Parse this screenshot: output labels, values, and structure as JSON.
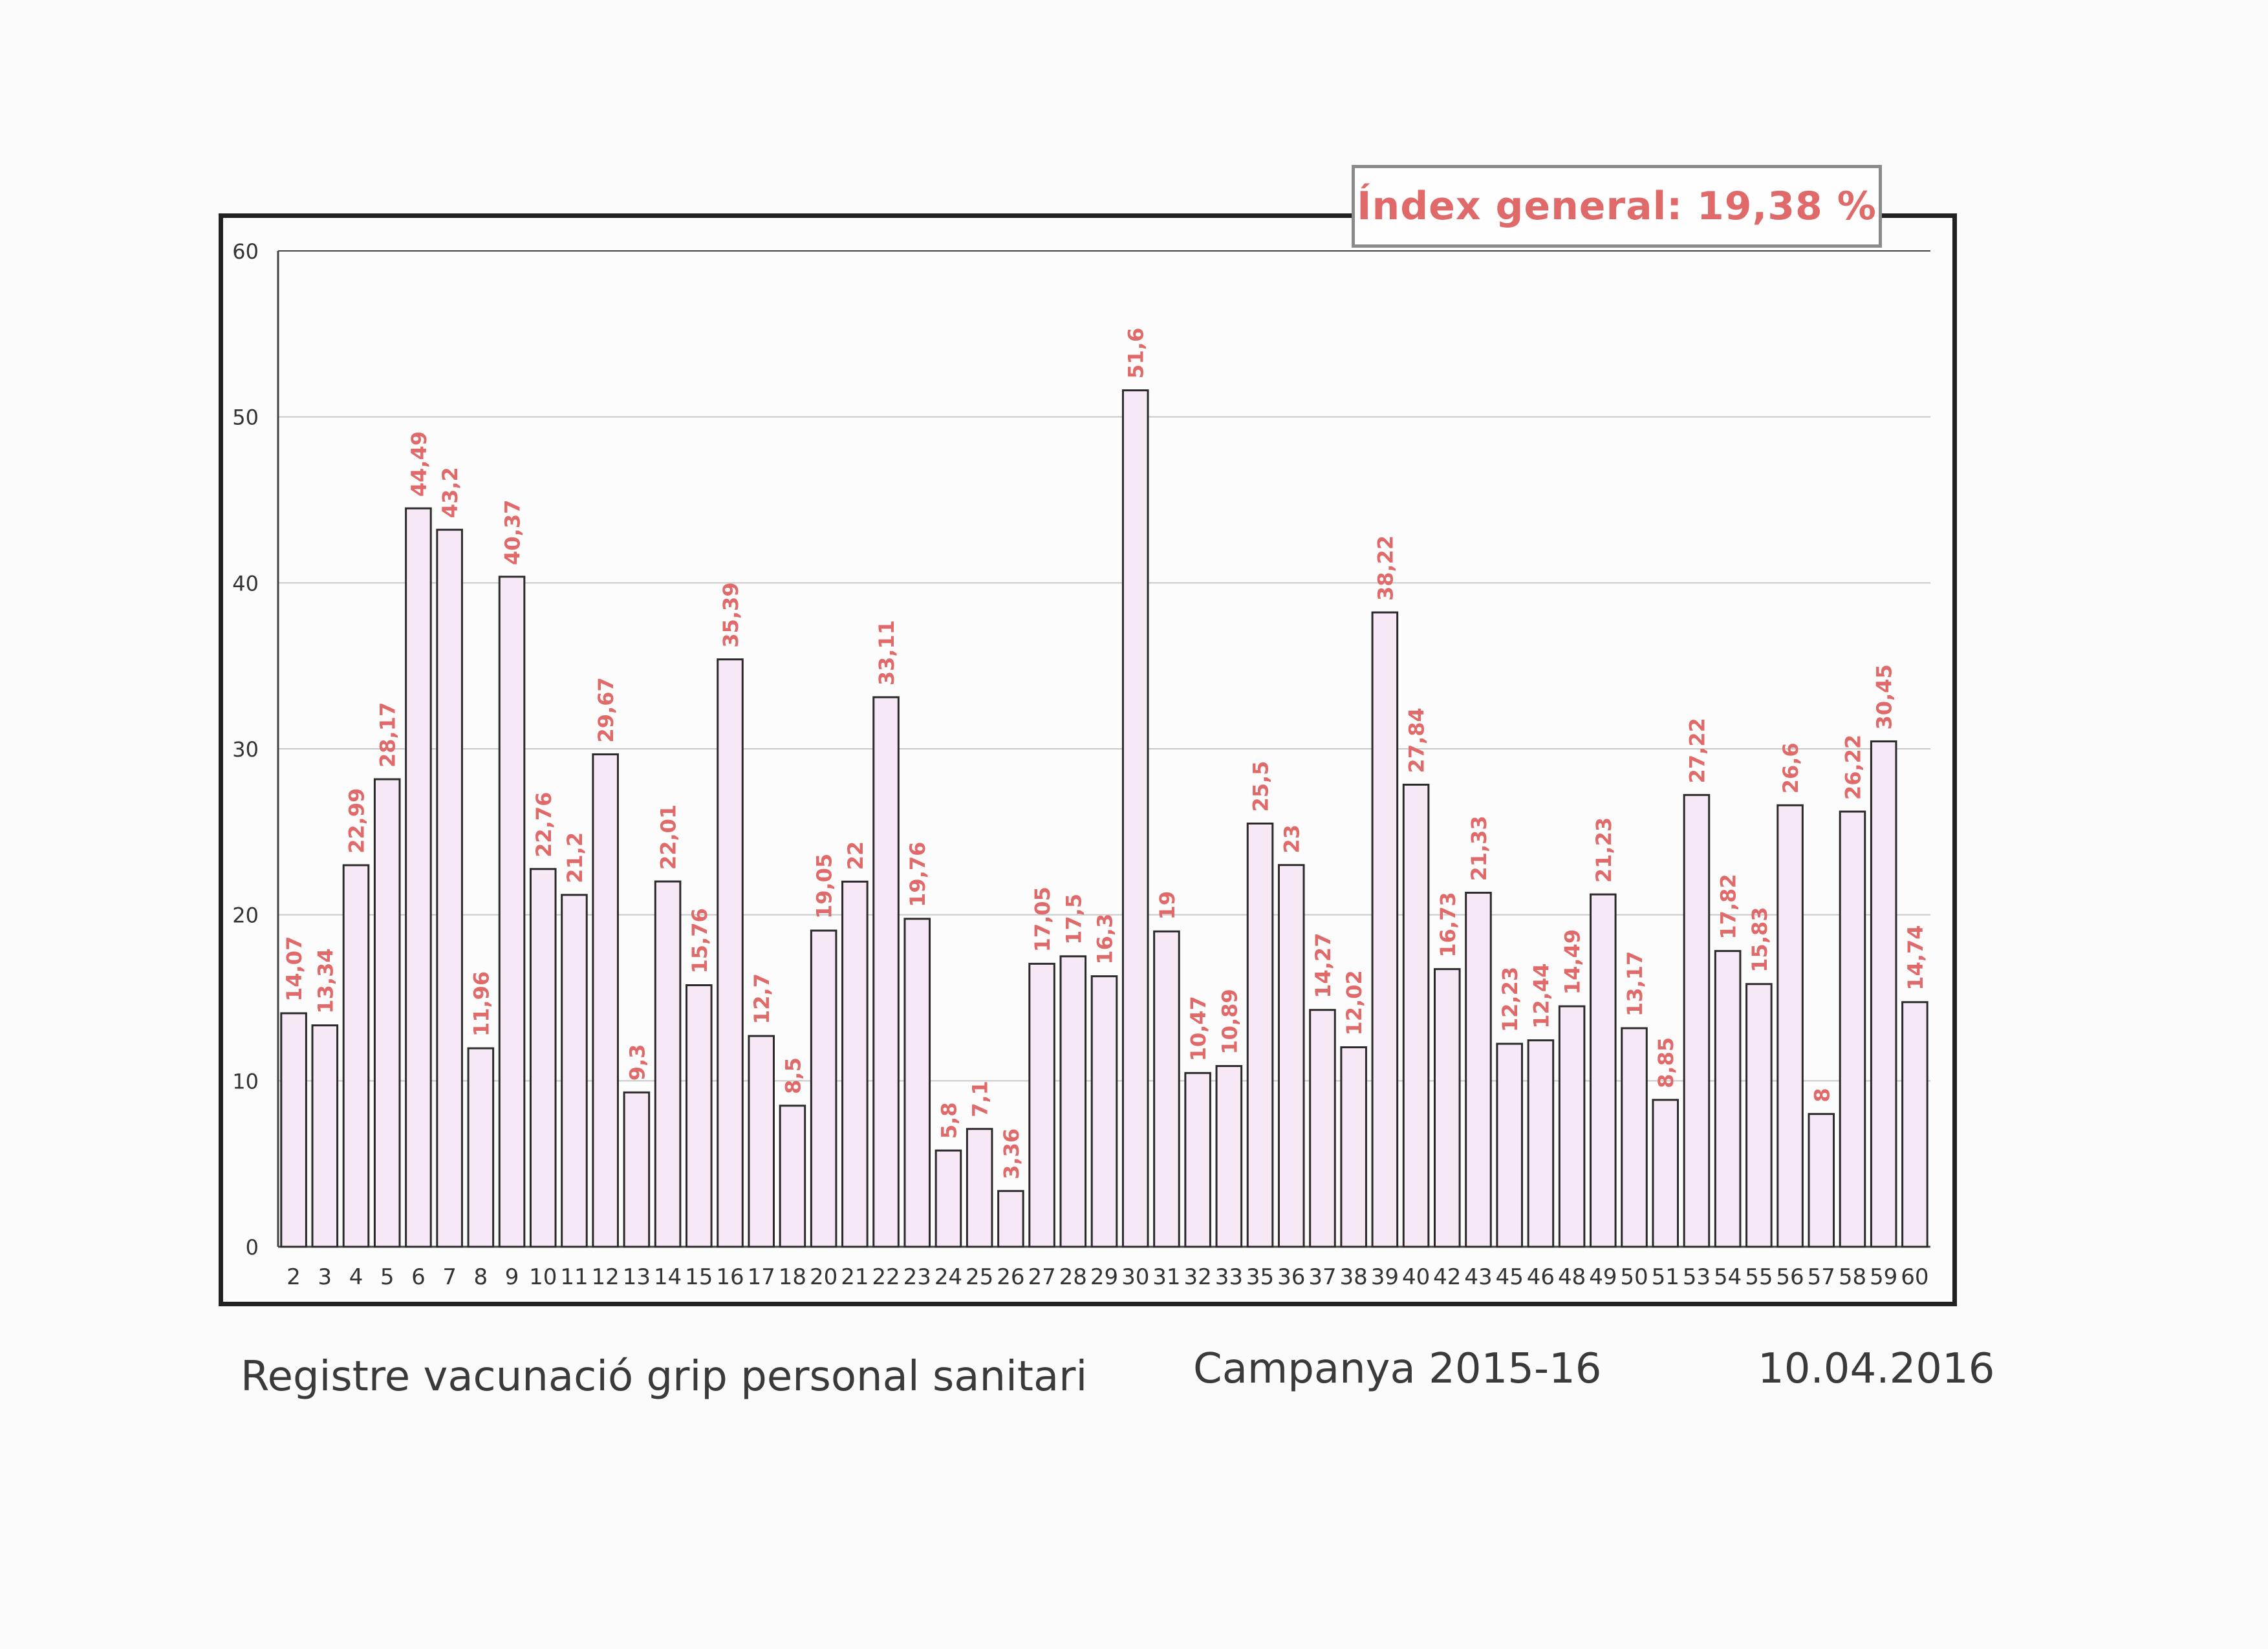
{
  "index_label": "Índex general: 19,38 %",
  "captions": {
    "title": "Registre vacunació grip personal sanitari",
    "campaign": "Campanya 2015-16",
    "date": "10.04.2016"
  },
  "colors": {
    "bar_fill": "#f6e8f4",
    "bar_stroke": "#2a2a2a",
    "label": "#e06a6a",
    "grid": "#c8c8c8"
  },
  "chart_data": {
    "type": "bar",
    "categories": [
      "2",
      "3",
      "4",
      "5",
      "6",
      "7",
      "8",
      "9",
      "10",
      "11",
      "12",
      "13",
      "14",
      "15",
      "16",
      "17",
      "18",
      "20",
      "21",
      "22",
      "23",
      "24",
      "25",
      "26",
      "27",
      "28",
      "29",
      "30",
      "31",
      "32",
      "33",
      "35",
      "36",
      "37",
      "38",
      "39",
      "40",
      "42",
      "43",
      "45",
      "46",
      "48",
      "49",
      "50",
      "51",
      "53",
      "54",
      "55",
      "56",
      "57",
      "58",
      "59",
      "60"
    ],
    "values": [
      14.07,
      13.34,
      22.99,
      28.17,
      44.49,
      43.2,
      11.96,
      40.37,
      22.76,
      21.2,
      29.67,
      9.3,
      22.01,
      15.76,
      35.39,
      12.7,
      8.5,
      19.05,
      22,
      33.11,
      19.76,
      5.8,
      7.1,
      3.36,
      17.05,
      17.5,
      16.3,
      51.6,
      19,
      10.47,
      10.89,
      25.5,
      23,
      14.27,
      12.02,
      38.22,
      27.84,
      16.73,
      21.33,
      12.23,
      12.44,
      14.49,
      21.23,
      13.17,
      8.85,
      27.22,
      17.82,
      15.83,
      26.6,
      8,
      26.22,
      30.45,
      14.74
    ],
    "labels": [
      "14,07",
      "13,34",
      "22,99",
      "28,17",
      "44,49",
      "43,2",
      "11,96",
      "40,37",
      "22,76",
      "21,2",
      "29,67",
      "9,3",
      "22,01",
      "15,76",
      "35,39",
      "12,7",
      "8,5",
      "19,05",
      "22",
      "33,11",
      "19,76",
      "5,8",
      "7,1",
      "3,36",
      "17,05",
      "17,5",
      "16,3",
      "51,6",
      "19",
      "10,47",
      "10,89",
      "25,5",
      "23",
      "14,27",
      "12,02",
      "38,22",
      "27,84",
      "16,73",
      "21,33",
      "12,23",
      "12,44",
      "14,49",
      "21,23",
      "13,17",
      "8,85",
      "27,22",
      "17,82",
      "15,83",
      "26,6",
      "8",
      "26,22",
      "30,45",
      "14,74"
    ],
    "ylim": [
      0,
      60
    ],
    "yticks": [
      "0",
      "10",
      "20",
      "30",
      "40",
      "50",
      "60"
    ],
    "grid": true
  }
}
